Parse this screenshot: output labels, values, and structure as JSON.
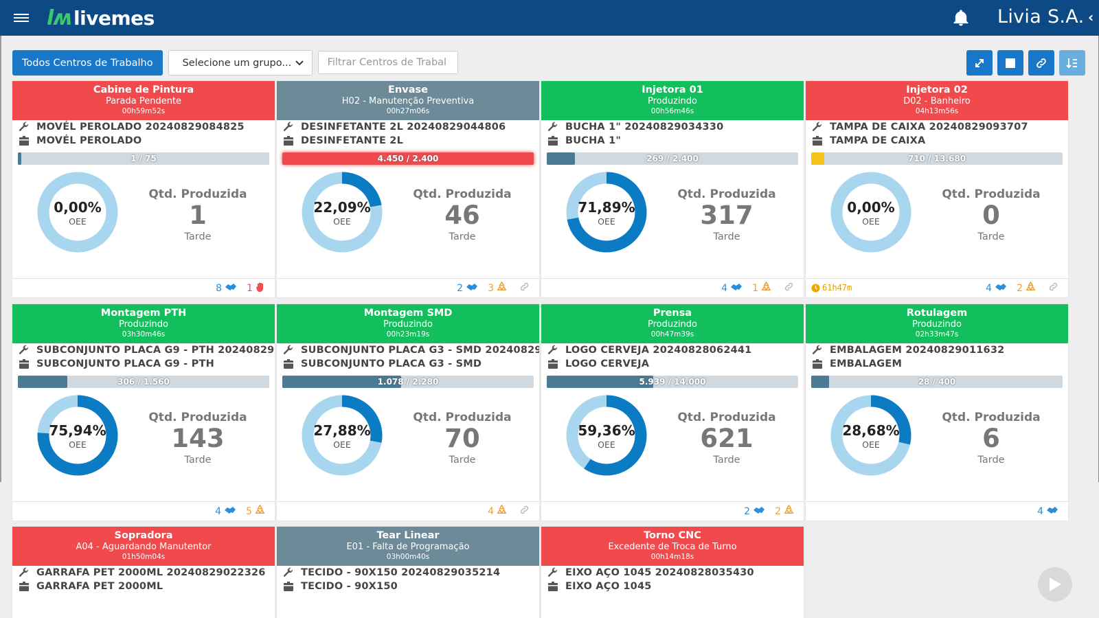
{
  "header": {
    "app_name": "livemes",
    "company": "Livia S.A."
  },
  "toolbar": {
    "all_button": "Todos Centros de Trabalho",
    "group_select": "Selecione um grupo...",
    "filter_placeholder": "Filtrar Centros de Trabal"
  },
  "colors": {
    "red": "#f14a4d",
    "gray": "#6d8a98",
    "green": "#13bf5c",
    "primary": "#1977c9"
  },
  "cards": [
    {
      "title": "Cabine de Pintura",
      "status": "Parada Pendente",
      "time": "00h59m52s",
      "op": "MOVÉL PEROLADO 20240829084825",
      "product": "MOVÉL PEROLADO",
      "progress": "1 / 75",
      "progress_pct": 1.3,
      "progress_style": "normal",
      "oee": "0,00%",
      "oee_pct": 0,
      "oee_label": "OEE",
      "qty_title": "Qtd. Produzida",
      "qty": "1",
      "shift": "Tarde",
      "footer": [
        {
          "value": "8",
          "icon": "handshake-icon",
          "color": "blue"
        },
        {
          "value": "1",
          "icon": "hand-stop-icon",
          "color": "red"
        }
      ]
    },
    {
      "title": "Envase",
      "status": "H02 - Manutenção Preventiva",
      "time": "00h27m06s",
      "op": "DESINFETANTE 2L 20240829044806",
      "product": "DESINFETANTE 2L",
      "progress": "4.450 / 2.400",
      "progress_pct": 100,
      "progress_style": "red",
      "oee": "22,09%",
      "oee_pct": 22.09,
      "oee_label": "OEE",
      "qty_title": "Qtd. Produzida",
      "qty": "46",
      "shift": "Tarde",
      "footer": [
        {
          "value": "2",
          "icon": "handshake-icon",
          "color": "blue"
        },
        {
          "value": "3",
          "icon": "recycle-icon",
          "color": "orange"
        },
        {
          "value": "",
          "icon": "link-icon",
          "color": "gray"
        }
      ]
    },
    {
      "title": "Injetora 01",
      "status": "Produzindo",
      "time": "00h56m46s",
      "op": "BUCHA 1\" 20240829034330",
      "product": "BUCHA 1\"",
      "progress": "269 / 2.400",
      "progress_pct": 11.2,
      "progress_style": "normal",
      "oee": "71,89%",
      "oee_pct": 71.89,
      "oee_label": "OEE",
      "qty_title": "Qtd. Produzida",
      "qty": "317",
      "shift": "Tarde",
      "footer": [
        {
          "value": "4",
          "icon": "handshake-icon",
          "color": "blue"
        },
        {
          "value": "1",
          "icon": "recycle-icon",
          "color": "orange"
        },
        {
          "value": "",
          "icon": "link-icon",
          "color": "gray"
        }
      ]
    },
    {
      "title": "Injetora 02",
      "status": "D02 - Banheiro",
      "time": "04h13m56s",
      "op": "TAMPA DE CAIXA 20240829093707",
      "product": "TAMPA DE CAIXA",
      "progress": "710 / 13.680",
      "progress_pct": 5.2,
      "progress_style": "yellow",
      "oee": "0,00%",
      "oee_pct": 0,
      "oee_label": "OEE",
      "qty_title": "Qtd. Produzida",
      "qty": "0",
      "shift": "Tarde",
      "footer_left": "61h47m",
      "footer": [
        {
          "value": "4",
          "icon": "handshake-icon",
          "color": "blue"
        },
        {
          "value": "2",
          "icon": "recycle-icon",
          "color": "orange"
        },
        {
          "value": "",
          "icon": "link-icon",
          "color": "gray"
        }
      ]
    },
    {
      "title": "Montagem PTH",
      "status": "Produzindo",
      "time": "03h30m46s",
      "op": "SUBCONJUNTO PLACA G9 - PTH 20240829...",
      "product": "SUBCONJUNTO PLACA G9 - PTH",
      "progress": "306 / 1.560",
      "progress_pct": 19.6,
      "progress_style": "normal",
      "oee": "75,94%",
      "oee_pct": 75.94,
      "oee_label": "OEE",
      "qty_title": "Qtd. Produzida",
      "qty": "143",
      "shift": "Tarde",
      "footer": [
        {
          "value": "4",
          "icon": "handshake-icon",
          "color": "blue"
        },
        {
          "value": "5",
          "icon": "recycle-icon",
          "color": "orange"
        }
      ]
    },
    {
      "title": "Montagem SMD",
      "status": "Produzindo",
      "time": "00h23m19s",
      "op": "SUBCONJUNTO PLACA G3 - SMD 20240829...",
      "product": "SUBCONJUNTO PLACA G3 - SMD",
      "progress": "1.078 / 2.280",
      "progress_pct": 47.3,
      "progress_style": "normal",
      "oee": "27,88%",
      "oee_pct": 27.88,
      "oee_label": "OEE",
      "qty_title": "Qtd. Produzida",
      "qty": "70",
      "shift": "Tarde",
      "footer": [
        {
          "value": "4",
          "icon": "recycle-icon",
          "color": "orange"
        },
        {
          "value": "",
          "icon": "link-icon",
          "color": "gray"
        }
      ]
    },
    {
      "title": "Prensa",
      "status": "Produzindo",
      "time": "00h47m39s",
      "op": "LOGO CERVEJA 20240828062441",
      "product": "LOGO CERVEJA",
      "progress": "5.939 / 14.000",
      "progress_pct": 42.4,
      "progress_style": "normal",
      "oee": "59,36%",
      "oee_pct": 59.36,
      "oee_label": "OEE",
      "qty_title": "Qtd. Produzida",
      "qty": "621",
      "shift": "Tarde",
      "footer": [
        {
          "value": "2",
          "icon": "handshake-icon",
          "color": "blue"
        },
        {
          "value": "2",
          "icon": "recycle-icon",
          "color": "orange"
        }
      ]
    },
    {
      "title": "Rotulagem",
      "status": "Produzindo",
      "time": "02h33m47s",
      "op": "EMBALAGEM 20240829011632",
      "product": "EMBALAGEM",
      "progress": "28 / 400",
      "progress_pct": 7,
      "progress_style": "normal",
      "oee": "28,68%",
      "oee_pct": 28.68,
      "oee_label": "OEE",
      "qty_title": "Qtd. Produzida",
      "qty": "6",
      "shift": "Tarde",
      "footer": [
        {
          "value": "4",
          "icon": "handshake-icon",
          "color": "blue"
        }
      ]
    },
    {
      "title": "Sopradora",
      "status": "A04 - Aguardando Manutentor",
      "time": "01h50m04s",
      "op": "GARRAFA PET 2000ML 20240829022326",
      "product": "GARRAFA PET 2000ML"
    },
    {
      "title": "Tear Linear",
      "status": "E01 - Falta de Programação",
      "time": "03h00m40s",
      "op": "TECIDO - 90X150 20240829035214",
      "product": "TECIDO - 90X150"
    },
    {
      "title": "Torno CNC",
      "status": "Excedente de Troca de Turno",
      "time": "00h14m18s",
      "op": "EIXO AÇO 1045 20240828035430",
      "product": "EIXO AÇO 1045"
    }
  ]
}
